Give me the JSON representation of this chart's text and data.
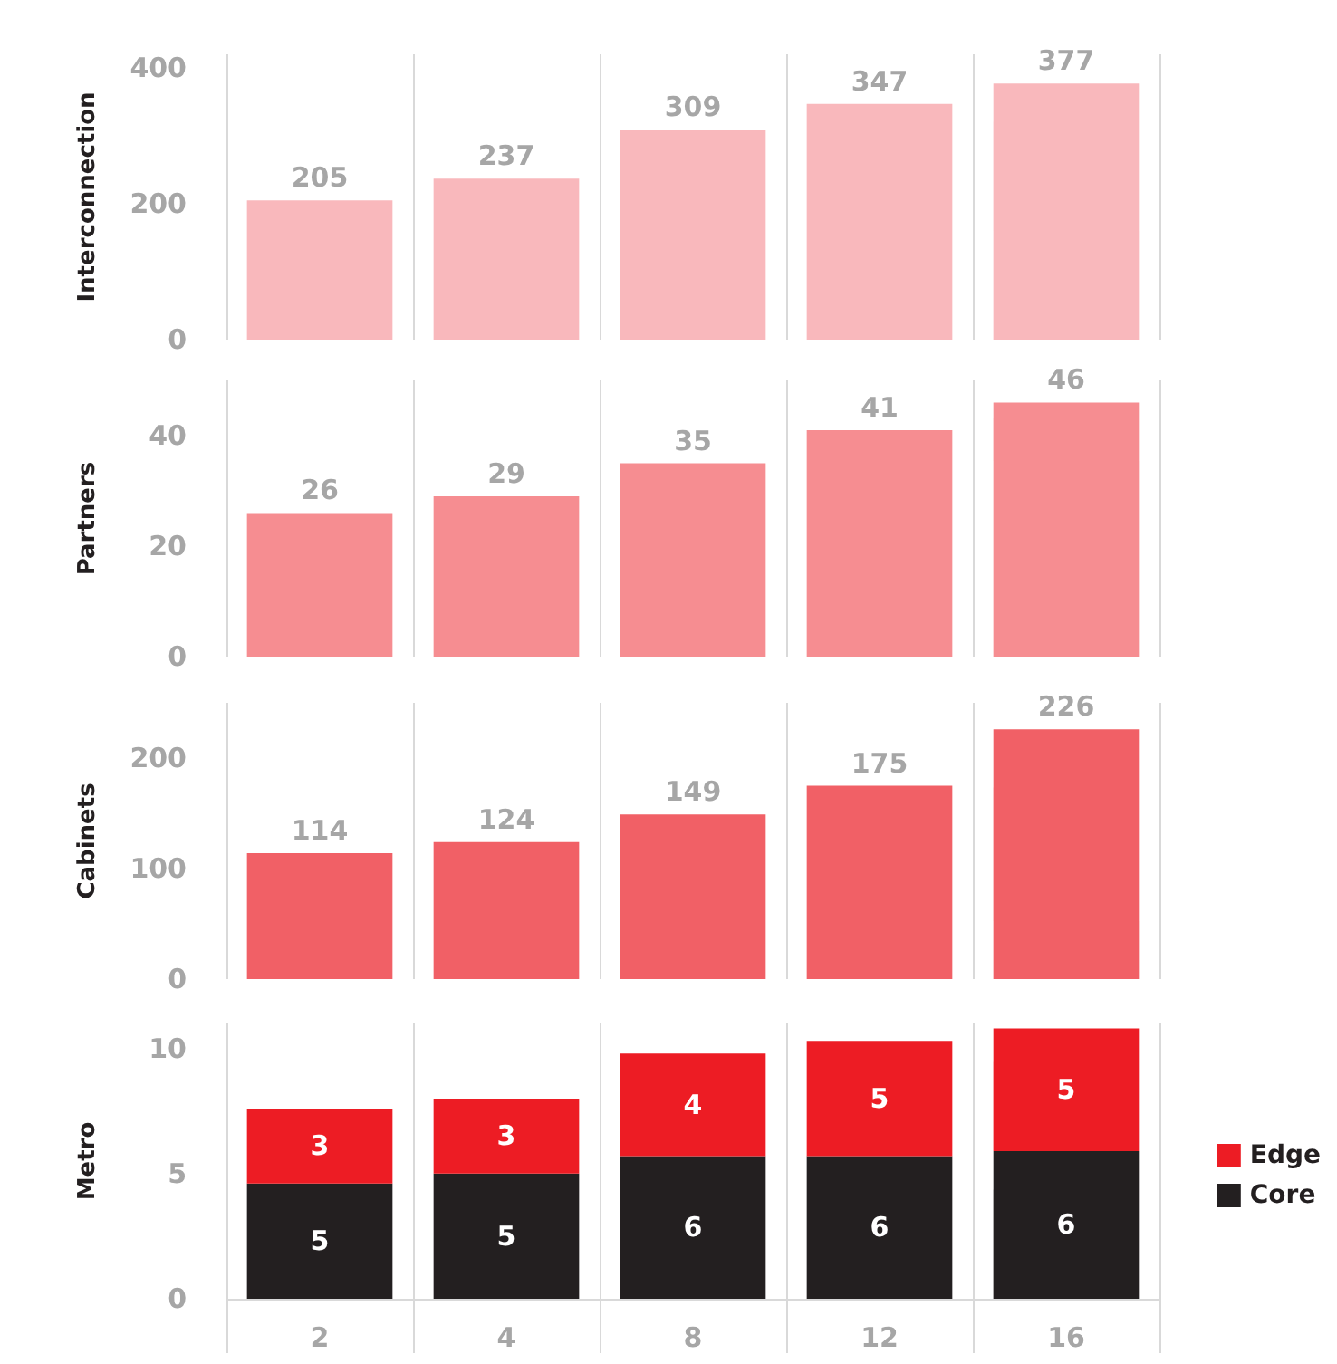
{
  "chart_data": [
    {
      "type": "bar",
      "ylabel": "Interconnection",
      "categories": [
        "2",
        "4",
        "8",
        "12",
        "16"
      ],
      "values": [
        205,
        237,
        309,
        347,
        377
      ],
      "color": "#f9b8bc",
      "ylim": [
        0,
        420
      ],
      "yticks": [
        0,
        200,
        400
      ],
      "data_labels": true,
      "grid": "x",
      "tick_labels": "y"
    },
    {
      "type": "bar",
      "ylabel": "Partners",
      "categories": [
        "2",
        "4",
        "8",
        "12",
        "16"
      ],
      "values": [
        26,
        29,
        35,
        41,
        46
      ],
      "color": "#f68d91",
      "ylim": [
        0,
        50
      ],
      "yticks": [
        0,
        20,
        40
      ],
      "data_labels": true,
      "grid": "x",
      "tick_labels": "y"
    },
    {
      "type": "bar",
      "ylabel": "Cabinets",
      "categories": [
        "2",
        "4",
        "8",
        "12",
        "16"
      ],
      "values": [
        114,
        124,
        149,
        175,
        226
      ],
      "color": "#f16066",
      "ylim": [
        0,
        250
      ],
      "yticks": [
        0,
        100,
        200
      ],
      "data_labels": true,
      "grid": "x",
      "tick_labels": "y"
    },
    {
      "type": "bar",
      "ylabel": "Metro",
      "categories": [
        "2",
        "4",
        "8",
        "12",
        "16"
      ],
      "stacked": true,
      "legend": "right",
      "grid": "x",
      "ylim": [
        0,
        11
      ],
      "yticks": [
        0,
        5,
        10
      ],
      "series": [
        {
          "name": "Core",
          "color": "#231f20",
          "values": [
            4.6,
            5.0,
            5.7,
            5.7,
            5.9
          ],
          "value_labels": [
            "5",
            "5",
            "6",
            "6",
            "6"
          ]
        },
        {
          "name": "Edge",
          "color": "#ed1c24",
          "values": [
            3.0,
            3.0,
            4.1,
            4.6,
            4.9
          ],
          "value_labels": [
            "3",
            "3",
            "4",
            "5",
            "5"
          ]
        }
      ]
    }
  ]
}
